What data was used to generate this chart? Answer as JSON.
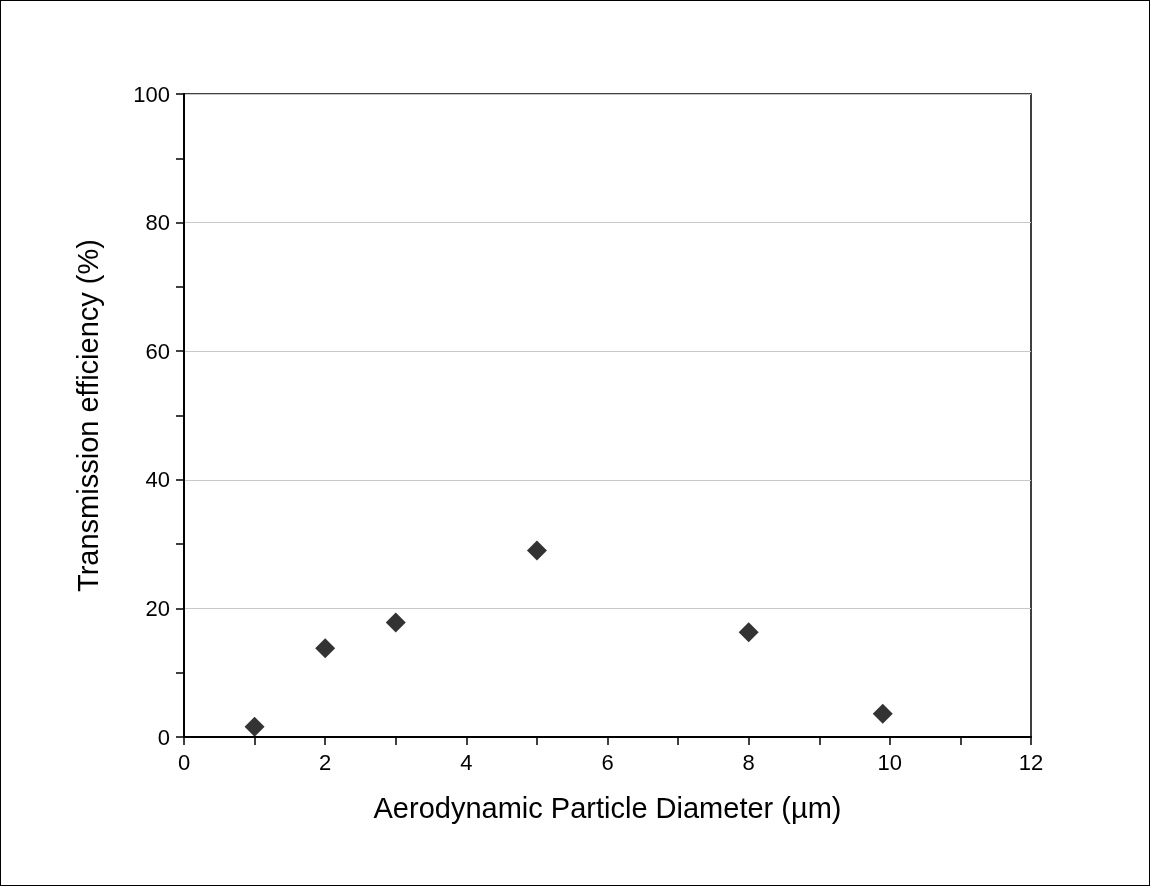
{
  "chart_data": {
    "type": "scatter",
    "xlabel": "Aerodynamic Particle Diameter (µm)",
    "ylabel": "Transmission efficiency (%)",
    "x": [
      1,
      2,
      3,
      5,
      8,
      9.9
    ],
    "values": [
      1.6,
      13.8,
      17.8,
      29.0,
      16.3,
      3.6
    ],
    "color": "#000000",
    "marker": "diamond",
    "xlim": [
      0,
      12
    ],
    "xticks": [
      0,
      {
        "value": 1,
        "label": null
      },
      2,
      {
        "value": 3,
        "label": null
      },
      4,
      {
        "value": 5,
        "label": null
      },
      6,
      {
        "value": 7,
        "label": null
      },
      8,
      {
        "value": 9,
        "label": null
      },
      10,
      {
        "value": 11,
        "label": null
      },
      12
    ],
    "ylim": [
      0,
      100
    ],
    "yticks": [
      0,
      {
        "value": 10,
        "label": null
      },
      20,
      {
        "value": 30,
        "label": null
      },
      40,
      {
        "value": 50,
        "label": null
      },
      60,
      {
        "value": 70,
        "label": null
      },
      80,
      {
        "value": 90,
        "label": null
      },
      100
    ],
    "grid": "y"
  }
}
